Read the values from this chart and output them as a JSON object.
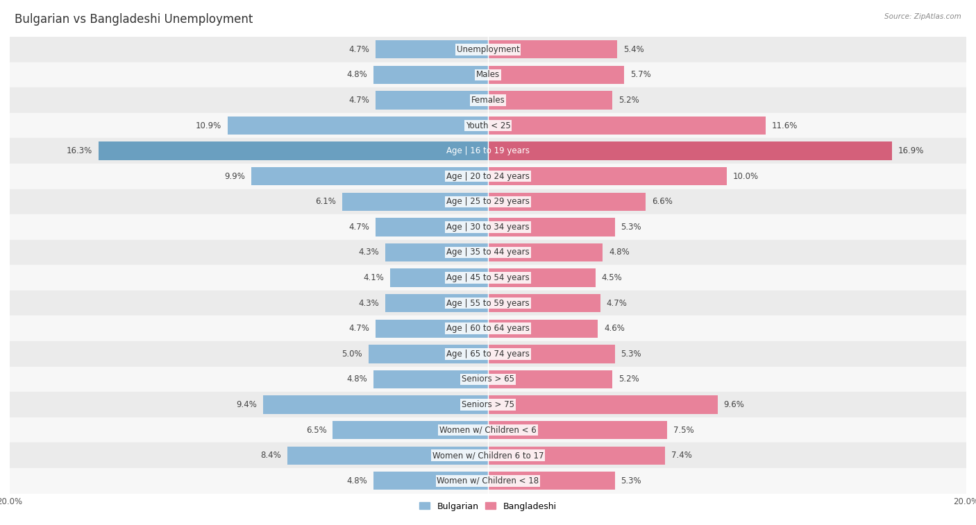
{
  "title": "Bulgarian vs Bangladeshi Unemployment",
  "source": "Source: ZipAtlas.com",
  "categories": [
    "Unemployment",
    "Males",
    "Females",
    "Youth < 25",
    "Age | 16 to 19 years",
    "Age | 20 to 24 years",
    "Age | 25 to 29 years",
    "Age | 30 to 34 years",
    "Age | 35 to 44 years",
    "Age | 45 to 54 years",
    "Age | 55 to 59 years",
    "Age | 60 to 64 years",
    "Age | 65 to 74 years",
    "Seniors > 65",
    "Seniors > 75",
    "Women w/ Children < 6",
    "Women w/ Children 6 to 17",
    "Women w/ Children < 18"
  ],
  "bulgarian": [
    4.7,
    4.8,
    4.7,
    10.9,
    16.3,
    9.9,
    6.1,
    4.7,
    4.3,
    4.1,
    4.3,
    4.7,
    5.0,
    4.8,
    9.4,
    6.5,
    8.4,
    4.8
  ],
  "bangladeshi": [
    5.4,
    5.7,
    5.2,
    11.6,
    16.9,
    10.0,
    6.6,
    5.3,
    4.8,
    4.5,
    4.7,
    4.6,
    5.3,
    5.2,
    9.6,
    7.5,
    7.4,
    5.3
  ],
  "bulgarian_color": "#8DB8D8",
  "bangladeshi_color": "#E8829A",
  "bulgarian_color_highlight": "#6A9FC0",
  "bangladeshi_color_highlight": "#D4607A",
  "row_bg_even": "#EBEBEB",
  "row_bg_odd": "#F7F7F7",
  "axis_max": 20.0,
  "bar_height": 0.72,
  "title_fontsize": 12,
  "label_fontsize": 8.5,
  "value_fontsize": 8.5,
  "legend_label_bulg": "Bulgarian",
  "legend_label_bang": "Bangladeshi"
}
